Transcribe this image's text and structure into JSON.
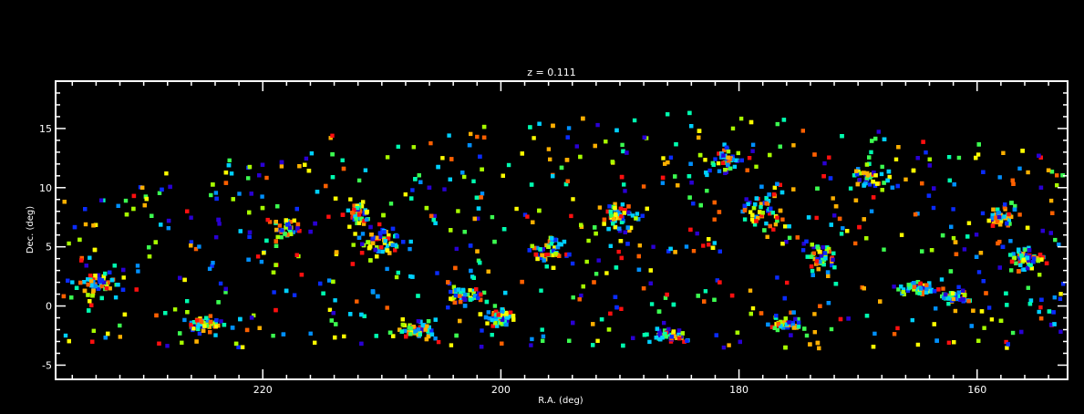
{
  "chart_data": {
    "type": "scatter",
    "title": "z = 0.111",
    "xlabel": "R.A. (deg)",
    "ylabel": "Dec. (deg)",
    "xlim": [
      237.4,
      152.4
    ],
    "ylim": [
      -6.2,
      19.0
    ],
    "x_ticks": [
      220,
      200,
      180,
      160
    ],
    "x_tick_labels": [
      "220",
      "200",
      "180",
      "160"
    ],
    "y_ticks": [
      -5,
      0,
      5,
      10,
      15
    ],
    "y_tick_labels": [
      "-5",
      "0",
      "5",
      "10",
      "15"
    ],
    "grid": false,
    "frame_color": "#ffffff",
    "background": "#000000",
    "marker": "square",
    "color_palette": [
      "#2a00d4",
      "#0a2cff",
      "#0090ff",
      "#00d0ff",
      "#00ffb0",
      "#3cff50",
      "#a8ff00",
      "#ffff00",
      "#ffb000",
      "#ff6000",
      "#ff1010"
    ],
    "point_count_estimate": 3200,
    "sample_points": [
      {
        "x": 236.0,
        "y": 2.0,
        "c": 3
      },
      {
        "x": 234.2,
        "y": -2.1,
        "c": 6
      },
      {
        "x": 231.5,
        "y": 8.9,
        "c": 5
      },
      {
        "x": 228.1,
        "y": 11.2,
        "c": 7
      },
      {
        "x": 226.0,
        "y": 5.4,
        "c": 1
      },
      {
        "x": 222.8,
        "y": 12.3,
        "c": 5
      },
      {
        "x": 219.4,
        "y": 7.1,
        "c": 9
      },
      {
        "x": 217.0,
        "y": 4.2,
        "c": 6
      },
      {
        "x": 214.3,
        "y": 14.2,
        "c": 8
      },
      {
        "x": 212.1,
        "y": 8.0,
        "c": 4
      },
      {
        "x": 210.2,
        "y": 6.9,
        "c": 10
      },
      {
        "x": 207.6,
        "y": 2.5,
        "c": 3
      },
      {
        "x": 204.9,
        "y": 12.5,
        "c": 7
      },
      {
        "x": 202.0,
        "y": 14.3,
        "c": 9
      },
      {
        "x": 200.5,
        "y": 0.0,
        "c": 5
      },
      {
        "x": 197.4,
        "y": -2.8,
        "c": 2
      },
      {
        "x": 194.1,
        "y": 7.6,
        "c": 10
      },
      {
        "x": 191.2,
        "y": 13.9,
        "c": 6
      },
      {
        "x": 188.0,
        "y": 10.1,
        "c": 9
      },
      {
        "x": 186.0,
        "y": 16.2,
        "c": 4
      },
      {
        "x": 184.3,
        "y": -2.9,
        "c": 3
      },
      {
        "x": 182.0,
        "y": 12.4,
        "c": 1
      },
      {
        "x": 180.5,
        "y": 15.0,
        "c": 6
      },
      {
        "x": 177.0,
        "y": 10.0,
        "c": 7
      },
      {
        "x": 174.3,
        "y": -2.5,
        "c": 5
      },
      {
        "x": 172.1,
        "y": 9.1,
        "c": 8
      },
      {
        "x": 168.9,
        "y": 13.0,
        "c": 4
      },
      {
        "x": 165.0,
        "y": 7.8,
        "c": 2
      },
      {
        "x": 162.2,
        "y": 1.1,
        "c": 4
      },
      {
        "x": 159.9,
        "y": 12.8,
        "c": 7
      },
      {
        "x": 157.4,
        "y": 6.8,
        "c": 9
      },
      {
        "x": 154.8,
        "y": -0.5,
        "c": 3
      },
      {
        "x": 153.3,
        "y": 10.2,
        "c": 6
      }
    ]
  }
}
